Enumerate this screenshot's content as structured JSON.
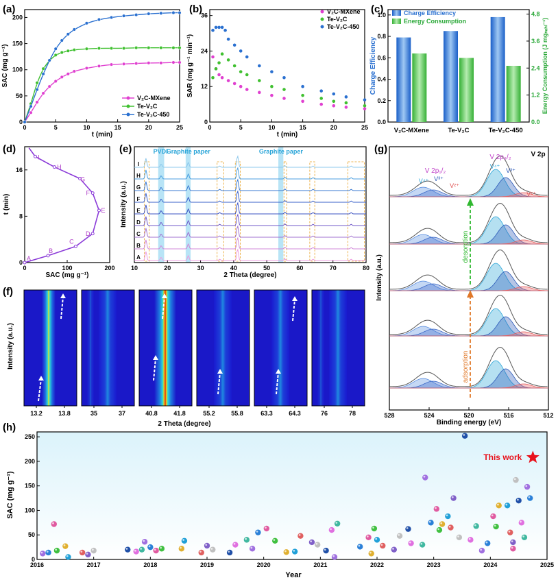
{
  "panels": {
    "a": {
      "label": "(a)"
    },
    "b": {
      "label": "(b)"
    },
    "c": {
      "label": "(c)"
    },
    "d": {
      "label": "(d)"
    },
    "e": {
      "label": "(e)"
    },
    "f": {
      "label": "(f)"
    },
    "g": {
      "label": "(g)"
    },
    "h": {
      "label": "(h)"
    }
  },
  "chart_data": [
    {
      "id": "a",
      "type": "line",
      "xlabel": "t (min)",
      "ylabel": "SAC (mg g⁻¹)",
      "xlim": [
        0,
        25
      ],
      "ylim": [
        0,
        215
      ],
      "xticks": [
        "0",
        "5",
        "10",
        "15",
        "20",
        "25"
      ],
      "yticks": [
        "0",
        "50",
        "100",
        "150",
        "200"
      ],
      "legend_position": "bottom-right",
      "series": [
        {
          "name": "V₂C-MXene",
          "color": "#e040d0",
          "x": [
            0,
            1,
            2,
            3,
            4,
            5,
            6,
            7,
            8,
            10,
            12,
            14,
            16,
            18,
            20,
            22,
            24,
            25
          ],
          "values": [
            0,
            18,
            38,
            55,
            68,
            78,
            86,
            92,
            97,
            103,
            107,
            110,
            111,
            112,
            113,
            113,
            114,
            114
          ]
        },
        {
          "name": "Te-V₂C",
          "color": "#40c030",
          "x": [
            0,
            1,
            2,
            3,
            4,
            5,
            6,
            7,
            8,
            10,
            12,
            14,
            16,
            18,
            20,
            22,
            24,
            25
          ],
          "values": [
            0,
            35,
            75,
            102,
            118,
            128,
            133,
            136,
            138,
            140,
            141,
            141,
            141,
            142,
            142,
            142,
            142,
            142
          ]
        },
        {
          "name": "Te-V₂C-450",
          "color": "#2a70d0",
          "x": [
            0,
            1,
            2,
            3,
            4,
            5,
            6,
            7,
            8,
            10,
            12,
            14,
            16,
            18,
            20,
            22,
            24,
            25
          ],
          "values": [
            0,
            30,
            62,
            92,
            118,
            140,
            156,
            168,
            177,
            189,
            196,
            200,
            203,
            205,
            207,
            208,
            209,
            209
          ]
        }
      ]
    },
    {
      "id": "b",
      "type": "scatter",
      "xlabel": "t (min)",
      "ylabel": "SAR (mg g⁻¹ min⁻¹)",
      "xlim": [
        0,
        25
      ],
      "ylim": [
        0,
        38
      ],
      "xticks": [
        "0",
        "5",
        "10",
        "15",
        "20",
        "25"
      ],
      "yticks": [
        "0",
        "12",
        "24",
        "36"
      ],
      "legend_position": "top-right",
      "series": [
        {
          "name": "V₂C-MXene",
          "color": "#e040d0",
          "x": [
            0.5,
            1,
            1.5,
            2,
            3,
            4,
            5,
            6,
            8,
            10,
            12,
            15,
            18,
            20,
            22,
            25
          ],
          "values": [
            22,
            18,
            16,
            15,
            14,
            13,
            12,
            11,
            10,
            9,
            8,
            7,
            6,
            5.5,
            5,
            4.5
          ]
        },
        {
          "name": "Te-V₂C",
          "color": "#40c030",
          "x": [
            0.5,
            1,
            1.5,
            2,
            3,
            4,
            5,
            6,
            8,
            10,
            12,
            15,
            18,
            20,
            22,
            25
          ],
          "values": [
            15,
            18,
            20,
            23,
            21,
            19,
            17,
            16,
            14,
            12,
            11,
            9,
            8,
            7,
            6.5,
            5.5
          ]
        },
        {
          "name": "Te-V₂C-450",
          "color": "#2a70d0",
          "x": [
            0.5,
            1,
            1.5,
            2,
            2.5,
            3,
            4,
            5,
            6,
            8,
            10,
            12,
            15,
            18,
            20,
            22,
            25
          ],
          "values": [
            31,
            32,
            32,
            32,
            31,
            28,
            26,
            24,
            22,
            19,
            17,
            15,
            12,
            10.5,
            9.5,
            8.5,
            7.5
          ]
        }
      ]
    },
    {
      "id": "c",
      "type": "bar",
      "categories": [
        "V₂C-MXene",
        "Te-V₂C",
        "Te-V₂C-450"
      ],
      "ylabel": "Charge Efficiency",
      "y2label": "Energy Consumption (J mgₙₐₕₗ⁻¹)",
      "ylim": [
        0,
        1.05
      ],
      "y2lim": [
        0,
        5.0
      ],
      "yticks": [
        "0.0",
        "0.2",
        "0.4",
        "0.6",
        "0.8",
        "1.0"
      ],
      "y2ticks": [
        "0.0",
        "1.2",
        "2.4",
        "3.6",
        "4.8"
      ],
      "legend_position": "top-left",
      "series": [
        {
          "name": "Charge Efficiency",
          "color": "#3a7fd5",
          "axis": "left",
          "values": [
            0.79,
            0.85,
            0.98
          ]
        },
        {
          "name": "Energy Consumption",
          "color": "#58c858",
          "axis": "right",
          "values": [
            3.05,
            2.85,
            2.5
          ]
        }
      ]
    },
    {
      "id": "d",
      "type": "line",
      "xlabel": "SAC (mg g⁻¹)",
      "ylabel": "t (min)",
      "xlim": [
        0,
        200
      ],
      "ylim": [
        0,
        20
      ],
      "xticks": [
        "0",
        "100",
        "200"
      ],
      "yticks": [
        "0",
        "8",
        "16"
      ],
      "series": [
        {
          "name": "",
          "color": "#8a3ad8",
          "x": [
            0,
            55,
            120,
            160,
            175,
            160,
            130,
            70,
            25,
            10
          ],
          "values": [
            0,
            1.2,
            2.8,
            5,
            9,
            12,
            14.5,
            16.5,
            18.3,
            19.8
          ]
        }
      ],
      "point_labels": [
        "A",
        "B",
        "C",
        "D",
        "E",
        "F",
        "G",
        "H",
        "I"
      ]
    },
    {
      "id": "e",
      "type": "line",
      "xlabel": "2 Theta (degree)",
      "ylabel": "Intensity (a.u.)",
      "xlim": [
        10,
        80
      ],
      "xticks": [
        "10",
        "20",
        "30",
        "40",
        "50",
        "60",
        "70",
        "80"
      ],
      "annotations": [
        "PVDF",
        "Graphite paper",
        "Graphite paper"
      ],
      "series_labels": [
        "I",
        "H",
        "G",
        "F",
        "E",
        "D",
        "C",
        "B",
        "A"
      ]
    },
    {
      "id": "f",
      "type": "heatmap",
      "xlabel": "2 Theta (degree)",
      "ylabel": "Intensity (a.u.)",
      "windows": [
        {
          "ticks": [
            "13.2",
            "13.8"
          ]
        },
        {
          "ticks": [
            "35",
            "37"
          ]
        },
        {
          "ticks": [
            "40.8",
            "41.8"
          ]
        },
        {
          "ticks": [
            "55.2",
            "55.8"
          ]
        },
        {
          "ticks": [
            "63.3",
            "64.3"
          ]
        },
        {
          "ticks": [
            "76",
            "78"
          ]
        }
      ]
    },
    {
      "id": "g",
      "type": "line",
      "xlabel": "Binding energy (eV)",
      "ylabel": "Intensity (a.u.)",
      "xlim": [
        528,
        512
      ],
      "xticks": [
        "528",
        "524",
        "520",
        "516",
        "512"
      ],
      "title": "V 2p",
      "annotations": {
        "p12": "V 2p₁/₂",
        "p32": "V 2p₃/₂",
        "v4a": "V⁴⁺",
        "v3a": "V³⁺",
        "v4b": "V⁴⁺",
        "v3b": "V³⁺",
        "v2a": "V²⁺",
        "v2b": "V²⁺",
        "desorption": "desorption",
        "adsorption": "adsorption"
      }
    },
    {
      "id": "h",
      "type": "scatter",
      "xlabel": "Year",
      "ylabel": "SAC (mg g⁻¹)",
      "xlim": [
        2016,
        2025
      ],
      "ylim": [
        0,
        260
      ],
      "xticks": [
        "2016",
        "2017",
        "2018",
        "2019",
        "2020",
        "2021",
        "2022",
        "2023",
        "2024",
        "2025"
      ],
      "yticks": [
        "0",
        "50",
        "100",
        "150",
        "200",
        "250"
      ],
      "annotation": "This work",
      "highlight": {
        "x": 2024.75,
        "y": 208
      },
      "points": [
        {
          "x": 2016.1,
          "y": 12
        },
        {
          "x": 2016.2,
          "y": 14
        },
        {
          "x": 2016.3,
          "y": 72
        },
        {
          "x": 2016.35,
          "y": 18
        },
        {
          "x": 2016.5,
          "y": 27
        },
        {
          "x": 2016.55,
          "y": 5
        },
        {
          "x": 2016.8,
          "y": 14
        },
        {
          "x": 2016.9,
          "y": 10
        },
        {
          "x": 2017.0,
          "y": 18
        },
        {
          "x": 2017.6,
          "y": 20
        },
        {
          "x": 2017.75,
          "y": 16
        },
        {
          "x": 2017.85,
          "y": 20
        },
        {
          "x": 2017.9,
          "y": 36
        },
        {
          "x": 2018.0,
          "y": 25
        },
        {
          "x": 2018.1,
          "y": 18
        },
        {
          "x": 2018.2,
          "y": 22
        },
        {
          "x": 2018.55,
          "y": 22
        },
        {
          "x": 2018.6,
          "y": 38
        },
        {
          "x": 2018.9,
          "y": 14
        },
        {
          "x": 2019.0,
          "y": 28
        },
        {
          "x": 2019.1,
          "y": 20
        },
        {
          "x": 2019.4,
          "y": 14
        },
        {
          "x": 2019.5,
          "y": 30
        },
        {
          "x": 2019.7,
          "y": 40
        },
        {
          "x": 2019.8,
          "y": 22
        },
        {
          "x": 2019.9,
          "y": 55
        },
        {
          "x": 2020.05,
          "y": 63
        },
        {
          "x": 2020.2,
          "y": 38
        },
        {
          "x": 2020.4,
          "y": 15
        },
        {
          "x": 2020.55,
          "y": 16
        },
        {
          "x": 2020.65,
          "y": 48
        },
        {
          "x": 2020.85,
          "y": 35
        },
        {
          "x": 2020.95,
          "y": 30
        },
        {
          "x": 2021.1,
          "y": 18
        },
        {
          "x": 2021.2,
          "y": 60
        },
        {
          "x": 2021.3,
          "y": 73
        },
        {
          "x": 2021.25,
          "y": 5
        },
        {
          "x": 2021.7,
          "y": 26
        },
        {
          "x": 2021.85,
          "y": 45
        },
        {
          "x": 2021.95,
          "y": 63
        },
        {
          "x": 2021.9,
          "y": 12
        },
        {
          "x": 2022.0,
          "y": 40
        },
        {
          "x": 2022.1,
          "y": 28
        },
        {
          "x": 2022.3,
          "y": 20
        },
        {
          "x": 2022.4,
          "y": 48
        },
        {
          "x": 2022.55,
          "y": 62
        },
        {
          "x": 2022.6,
          "y": 33
        },
        {
          "x": 2022.8,
          "y": 30
        },
        {
          "x": 2022.85,
          "y": 167
        },
        {
          "x": 2022.95,
          "y": 75
        },
        {
          "x": 2023.05,
          "y": 103
        },
        {
          "x": 2023.1,
          "y": 60
        },
        {
          "x": 2023.15,
          "y": 72
        },
        {
          "x": 2023.25,
          "y": 88
        },
        {
          "x": 2023.3,
          "y": 65
        },
        {
          "x": 2023.35,
          "y": 125
        },
        {
          "x": 2023.45,
          "y": 45
        },
        {
          "x": 2023.55,
          "y": 252
        },
        {
          "x": 2023.65,
          "y": 40
        },
        {
          "x": 2023.75,
          "y": 68
        },
        {
          "x": 2023.85,
          "y": 18
        },
        {
          "x": 2023.95,
          "y": 33
        },
        {
          "x": 2024.05,
          "y": 88
        },
        {
          "x": 2024.1,
          "y": 67
        },
        {
          "x": 2024.15,
          "y": 110
        },
        {
          "x": 2024.3,
          "y": 110
        },
        {
          "x": 2024.35,
          "y": 55
        },
        {
          "x": 2024.4,
          "y": 35
        },
        {
          "x": 2024.45,
          "y": 162
        },
        {
          "x": 2024.5,
          "y": 120
        },
        {
          "x": 2024.55,
          "y": 75
        },
        {
          "x": 2024.6,
          "y": 45
        },
        {
          "x": 2024.65,
          "y": 148
        },
        {
          "x": 2024.7,
          "y": 125
        },
        {
          "x": 2024.4,
          "y": 22
        }
      ]
    }
  ],
  "colors": {
    "magenta": "#e040d0",
    "green": "#40c030",
    "blue": "#2a70d0",
    "purple": "#8a3ad8",
    "cyan": "#2aa5d8",
    "orange": "#e07828",
    "star": "#e8121c"
  }
}
